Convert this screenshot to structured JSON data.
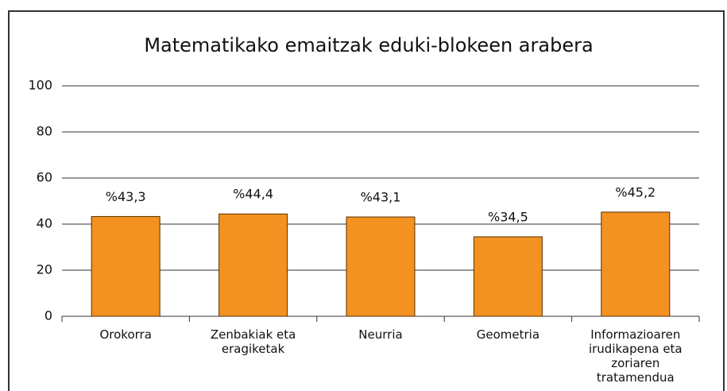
{
  "chart_data": {
    "type": "bar",
    "title": "Matematikako emaitzak eduki-blokeen arabera",
    "categories": [
      "Orokorra",
      "Zenbakiak eta eragiketak",
      "Neurria",
      "Geometria",
      "Informazioaren irudikapena eta zoriaren tratamendua"
    ],
    "values": [
      43.3,
      44.4,
      43.1,
      34.5,
      45.2
    ],
    "value_labels": [
      "%43,3",
      "%44,4",
      "%43,1",
      "%34,5",
      "%45,2"
    ],
    "color": "#f39121",
    "ylim": [
      0,
      100
    ],
    "yticks": [
      0,
      20,
      40,
      60,
      80,
      100
    ],
    "grid": true
  }
}
